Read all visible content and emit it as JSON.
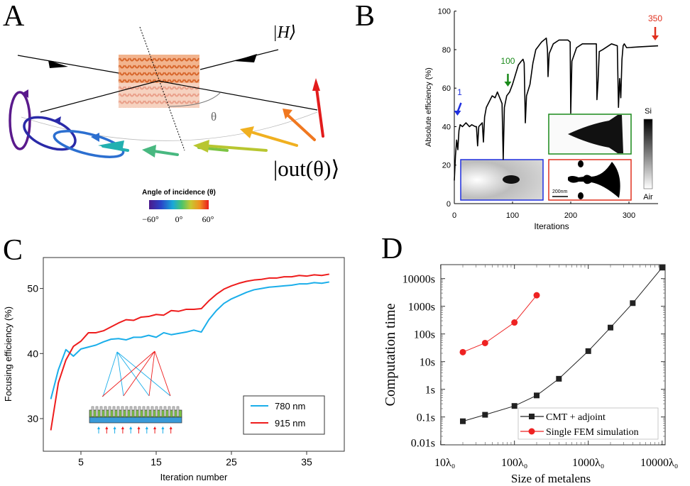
{
  "figure": {
    "panel_labels": {
      "a": "A",
      "b": "B",
      "c": "C",
      "d": "D"
    }
  },
  "panel_a": {
    "ket_h": "|H⟩",
    "theta": "θ",
    "ket_out": "|out(θ)⟩",
    "colorbar_title": "Angle of incidence (θ)",
    "colorbar_ticks": [
      "−60°",
      "0°",
      "60°"
    ],
    "colors": [
      "#5a1a8c",
      "#2a2aa8",
      "#2c6fd0",
      "#22b0b0",
      "#7cc443",
      "#b8c630",
      "#f0b020",
      "#f07820",
      "#e21c1c"
    ]
  },
  "chart_data": [
    {
      "panel": "B",
      "type": "line",
      "title": "",
      "xlabel": "Iterations",
      "ylabel": "Absolute efficiency (%)",
      "xlim": [
        0,
        350
      ],
      "ylim": [
        0,
        100
      ],
      "xticks": [
        "0",
        "100",
        "200",
        "300"
      ],
      "yticks": [
        "0",
        "20",
        "40",
        "60",
        "80",
        "100"
      ],
      "grid": false,
      "series": [
        {
          "name": "efficiency",
          "color": "#000000",
          "x": [
            0,
            2,
            4,
            6,
            8,
            10,
            14,
            20,
            26,
            30,
            36,
            38,
            40,
            42,
            48,
            50,
            52,
            55,
            60,
            65,
            70,
            74,
            78,
            82,
            84,
            86,
            90,
            95,
            100,
            105,
            110,
            115,
            118,
            120,
            122,
            124,
            130,
            135,
            140,
            150,
            158,
            160,
            161,
            163,
            170,
            180,
            195,
            199,
            200,
            202,
            210,
            220,
            240,
            244,
            245,
            247,
            249,
            255,
            270,
            280,
            282,
            284,
            286,
            288,
            290,
            292,
            296,
            320,
            350
          ],
          "y": [
            12,
            25,
            33,
            28,
            38,
            41,
            40,
            42,
            40,
            41,
            40,
            40,
            30,
            40,
            42,
            32,
            45,
            50,
            53,
            56,
            55,
            58,
            55,
            52,
            23,
            50,
            56,
            58,
            62,
            67,
            72,
            74,
            75,
            73,
            42,
            56,
            62,
            73,
            80,
            84,
            86,
            80,
            66,
            78,
            83,
            85,
            85,
            84,
            47,
            74,
            81,
            83,
            83,
            83,
            54,
            64,
            79,
            80,
            83,
            82,
            50,
            65,
            55,
            75,
            82,
            83,
            81,
            81.5,
            82
          ]
        }
      ],
      "annotations": [
        {
          "text": "1",
          "x": 3,
          "color": "#1f2fe0"
        },
        {
          "text": "100",
          "x": 92,
          "color": "#1a8a1a"
        },
        {
          "text": "350",
          "x": 350,
          "color": "#e0301e"
        }
      ],
      "insets": {
        "scale_bar": "200nm",
        "colorbar_top": "Si",
        "colorbar_bottom": "Air",
        "frame_colors": [
          "#1f2fe0",
          "#1a8a1a",
          "#e0301e"
        ]
      }
    },
    {
      "panel": "C",
      "type": "line",
      "title": "",
      "xlabel": "Iteration number",
      "ylabel": "Focusing efficiency (%)",
      "xlim": [
        0,
        40
      ],
      "ylim": [
        25,
        54.8
      ],
      "xticks": [
        "5",
        "15",
        "25",
        "35"
      ],
      "yticks": [
        "30",
        "40",
        "50"
      ],
      "grid": false,
      "legend": "bottom-right",
      "x": [
        1,
        2,
        3,
        4,
        5,
        6,
        7,
        8,
        9,
        10,
        11,
        12,
        13,
        14,
        15,
        16,
        17,
        18,
        19,
        20,
        21,
        22,
        23,
        24,
        25,
        26,
        27,
        28,
        29,
        30,
        31,
        32,
        33,
        34,
        35,
        36,
        37,
        38
      ],
      "series": [
        {
          "name": "780 nm",
          "color": "#1aaeea",
          "values": [
            33,
            37.5,
            40.6,
            39.6,
            40.7,
            41,
            41.3,
            41.8,
            42.2,
            42.3,
            42.1,
            42.5,
            42.5,
            42.8,
            42.5,
            43.2,
            42.9,
            43.1,
            43.3,
            43.6,
            43.3,
            45.2,
            46.6,
            47.7,
            48.4,
            48.9,
            49.4,
            49.8,
            50.0,
            50.2,
            50.3,
            50.4,
            50.5,
            50.7,
            50.7,
            50.9,
            50.8,
            51.0
          ]
        },
        {
          "name": "915 nm",
          "color": "#ee1c1c",
          "values": [
            28.2,
            35.5,
            39,
            41.1,
            41.9,
            43.2,
            43.2,
            43.5,
            44.1,
            44.7,
            45.2,
            45.1,
            45.6,
            45.7,
            46.0,
            45.9,
            46.6,
            46.5,
            46.8,
            46.8,
            46.9,
            48.1,
            49.1,
            49.9,
            50.4,
            50.8,
            51.1,
            51.3,
            51.4,
            51.6,
            51.6,
            51.8,
            51.8,
            52.0,
            51.9,
            52.1,
            52.0,
            52.2
          ]
        }
      ]
    },
    {
      "panel": "D",
      "type": "line",
      "title": "",
      "xlabel": "Size of metalens",
      "ylabel": "Computation time",
      "xscale": "log",
      "yscale": "log",
      "xlim": [
        10,
        10700
      ],
      "ylim": [
        0.01,
        31623
      ],
      "xticks": [
        "10λ₀",
        "100λ₀",
        "1000λ₀",
        "10000λ₀"
      ],
      "yticks": [
        "0.01s",
        "0.1s",
        "1s",
        "10s",
        "100s",
        "1000s",
        "10000s"
      ],
      "grid": false,
      "legend": "bottom-right",
      "series": [
        {
          "name": "CMT + adjoint",
          "color": "#222222",
          "marker": "square",
          "x": [
            20,
            40,
            100,
            200,
            400,
            1000,
            2000,
            4000,
            10000
          ],
          "y": [
            0.07,
            0.12,
            0.25,
            0.6,
            2.4,
            24,
            170,
            1300,
            25000
          ]
        },
        {
          "name": "Single FEM simulation",
          "color": "#ee2222",
          "marker": "circle",
          "x": [
            20,
            40,
            100,
            200
          ],
          "y": [
            22,
            47,
            260,
            2500
          ]
        }
      ]
    }
  ]
}
